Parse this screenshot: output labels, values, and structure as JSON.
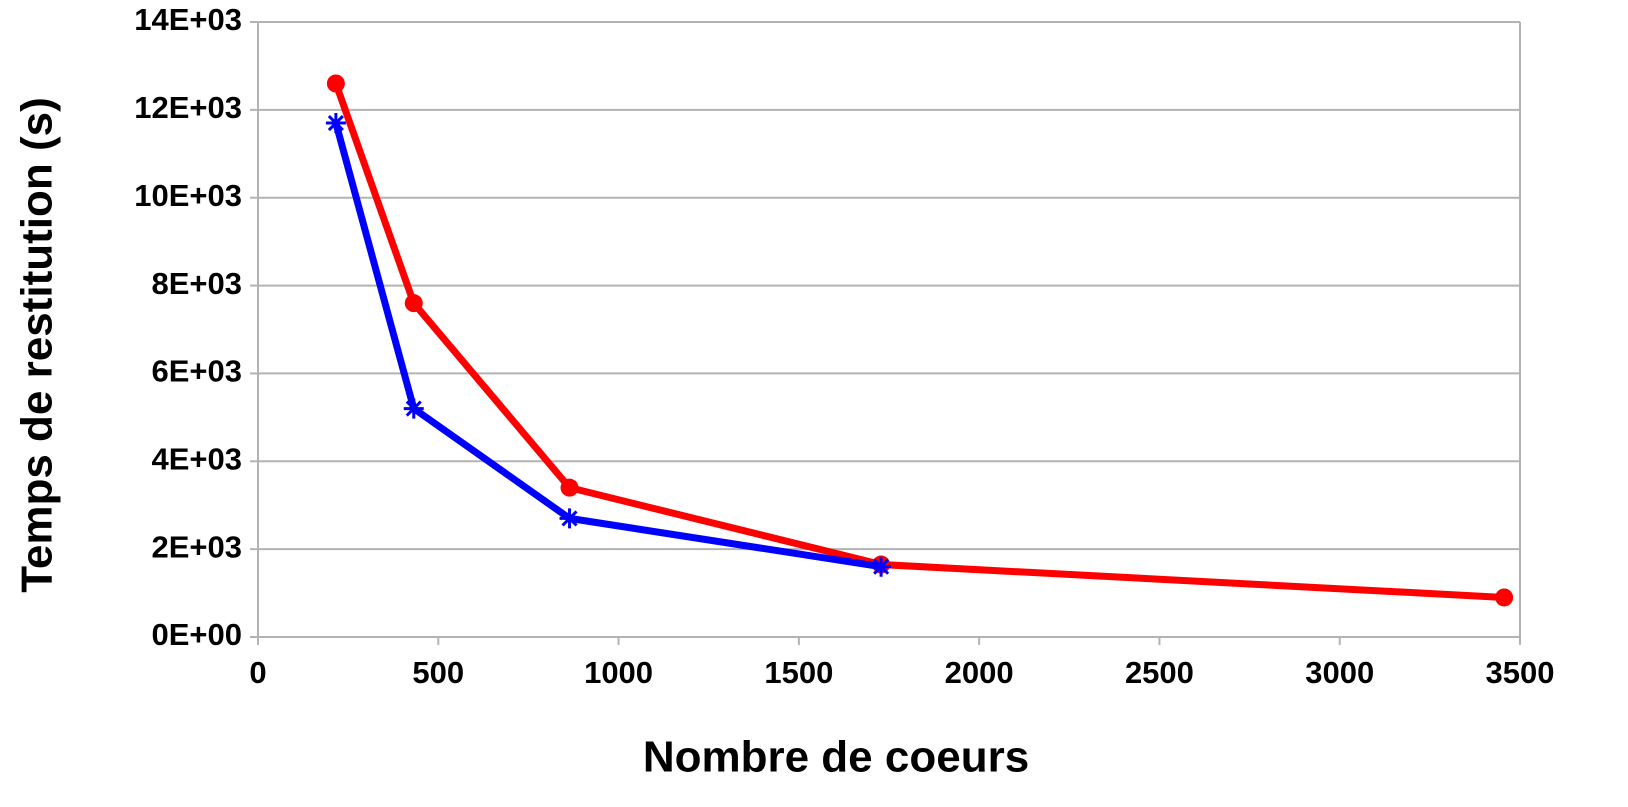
{
  "chart_data": {
    "type": "line",
    "xlabel": "Nombre de coeurs",
    "ylabel": "Temps de restitution (s)",
    "series": [
      {
        "color": "#ff0000",
        "marker": "circle",
        "x": [
          216,
          432,
          864,
          1728,
          3456
        ],
        "values": [
          12600,
          7600,
          3400,
          1650,
          900
        ]
      },
      {
        "color": "#0000ff",
        "marker": "asterisk",
        "x": [
          216,
          432,
          864,
          1728
        ],
        "values": [
          11700,
          5200,
          2700,
          1600
        ]
      }
    ],
    "xlim": [
      0,
      3500
    ],
    "xticks": [
      0,
      500,
      1000,
      1500,
      2000,
      2500,
      3000,
      3500
    ],
    "ylim": [
      0,
      14000
    ],
    "yticks": [
      {
        "value": 0,
        "label": "0E+00"
      },
      {
        "value": 2000,
        "label": "2E+03"
      },
      {
        "value": 4000,
        "label": "4E+03"
      },
      {
        "value": 6000,
        "label": "6E+03"
      },
      {
        "value": 8000,
        "label": "8E+03"
      },
      {
        "value": 10000,
        "label": "10E+03"
      },
      {
        "value": 12000,
        "label": "12E+03"
      },
      {
        "value": 14000,
        "label": "14E+03"
      }
    ],
    "grid": true
  }
}
